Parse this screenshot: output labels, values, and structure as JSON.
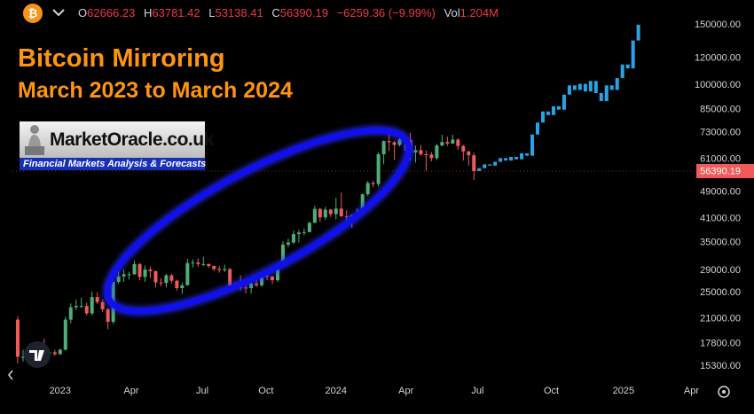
{
  "header": {
    "items": [
      {
        "label": "O",
        "value": "62666.23"
      },
      {
        "label": "H",
        "value": "63781.42"
      },
      {
        "label": "L",
        "value": "53138.41"
      },
      {
        "label": "C",
        "value": "56390.19"
      }
    ],
    "change": "−6259.36 (−9.99%)",
    "vol_label": "Vol",
    "vol": "1.204M"
  },
  "title": "Bitcoin Mirroring",
  "subtitle": "March 2023 to March 2024",
  "logo": {
    "name": "MarketOracle.co.uk",
    "tagline": "Financial Markets Analysis & Forecasts"
  },
  "chart_data": {
    "type": "candlestick",
    "log_scale": true,
    "grid": false,
    "ylim": [
      14100,
      176900
    ],
    "yticks": [
      {
        "value": 150000,
        "label": "150000.00"
      },
      {
        "value": 120000,
        "label": "120000.00"
      },
      {
        "value": 100000,
        "label": "100000.00"
      },
      {
        "value": 85000,
        "label": "85000.00"
      },
      {
        "value": 73000,
        "label": "73000.00"
      },
      {
        "value": 61000,
        "label": "61000.00"
      },
      {
        "value": 49000,
        "label": "49000.00"
      },
      {
        "value": 41000,
        "label": "41000.00"
      },
      {
        "value": 35000,
        "label": "35000.00"
      },
      {
        "value": 29000,
        "label": "29000.00"
      },
      {
        "value": 25000,
        "label": "25000.00"
      },
      {
        "value": 21000,
        "label": "21000.00"
      },
      {
        "value": 17800,
        "label": "17800.00"
      },
      {
        "value": 15300,
        "label": "15300.00"
      }
    ],
    "xlim": [
      -1,
      128.6
    ],
    "xticks": [
      {
        "value": 8,
        "label": "2023"
      },
      {
        "value": 21.4,
        "label": "Apr"
      },
      {
        "value": 34.8,
        "label": "Jul"
      },
      {
        "value": 46.8,
        "label": "Oct"
      },
      {
        "value": 60,
        "label": "2024"
      },
      {
        "value": 73.2,
        "label": "Apr"
      },
      {
        "value": 86.7,
        "label": "Jul"
      },
      {
        "value": 100.6,
        "label": "Oct"
      },
      {
        "value": 114.2,
        "label": "2025"
      },
      {
        "value": 127,
        "label": "Apr"
      }
    ],
    "candles": {
      "up_color": "#4caf78",
      "down_color": "#f05a5a",
      "open": [
        20900,
        16300,
        16300,
        16400,
        17100,
        17100,
        16800,
        16800,
        16600,
        17100,
        20900,
        22700,
        22900,
        22900,
        21800,
        24300,
        23500,
        22400,
        20600,
        26900,
        27900,
        28300,
        28300,
        30300,
        27800,
        29200,
        28900,
        26800,
        26700,
        28100,
        27100,
        25800,
        26300,
        30500,
        30600,
        30300,
        30300,
        29900,
        29300,
        29100,
        29300,
        26100,
        26000,
        25900,
        25800,
        26600,
        26300,
        28000,
        27900,
        27200,
        30000,
        34500,
        35000,
        37000,
        37400,
        37500,
        39900,
        43800,
        41400,
        43600,
        42300,
        43900,
        41700,
        41600,
        42000,
        42600,
        48300,
        52100,
        51700,
        63100,
        68900,
        68400,
        67200,
        69700,
        69400,
        63900,
        64900,
        63100,
        63000,
        61500,
        66900,
        68500,
        67800,
        69600,
        66700,
        64300,
        62666.23
      ],
      "high": [
        21400,
        17100,
        16800,
        17400,
        18000,
        18400,
        17000,
        17100,
        17200,
        21300,
        23300,
        23900,
        24200,
        23400,
        25200,
        25100,
        23900,
        22600,
        28400,
        29000,
        29200,
        28800,
        31000,
        30500,
        30000,
        29800,
        29000,
        27600,
        28400,
        28400,
        27300,
        26800,
        31400,
        31300,
        31500,
        31800,
        30400,
        30000,
        29900,
        30200,
        29500,
        26800,
        28100,
        26400,
        27000,
        27500,
        28600,
        28600,
        28000,
        30400,
        35300,
        35900,
        37900,
        38000,
        38400,
        40200,
        44700,
        44000,
        44400,
        43800,
        47200,
        48900,
        43400,
        42100,
        43900,
        48500,
        52800,
        52900,
        64000,
        69200,
        73800,
        68900,
        71600,
        71300,
        72800,
        66900,
        67200,
        64700,
        64000,
        67700,
        71900,
        71000,
        71900,
        70200,
        67200,
        64600,
        63781.42
      ],
      "low": [
        15600,
        15800,
        15500,
        16000,
        16700,
        16300,
        16400,
        16400,
        16500,
        17000,
        20400,
        22300,
        22600,
        21500,
        21500,
        23200,
        22000,
        19600,
        20300,
        26600,
        26900,
        27300,
        28200,
        27200,
        26900,
        27600,
        25900,
        26100,
        25900,
        26600,
        25400,
        24800,
        26200,
        29600,
        29800,
        29900,
        29600,
        28900,
        28600,
        28700,
        25200,
        25800,
        25400,
        24900,
        24900,
        26000,
        26000,
        27200,
        26500,
        26900,
        29900,
        33900,
        34600,
        35000,
        36700,
        37500,
        39900,
        40200,
        40700,
        41500,
        40800,
        41500,
        40300,
        38600,
        41900,
        42300,
        47700,
        50600,
        50900,
        59000,
        64500,
        60800,
        66500,
        64600,
        60700,
        59700,
        62400,
        56500,
        60200,
        60700,
        66600,
        66700,
        67600,
        65100,
        60500,
        58500,
        53138.41
      ],
      "close": [
        16300,
        16300,
        16400,
        17100,
        17100,
        16800,
        16800,
        16600,
        17100,
        20900,
        22700,
        22900,
        22900,
        21800,
        24300,
        23500,
        22400,
        20600,
        26900,
        27900,
        28300,
        28300,
        30300,
        27800,
        29200,
        28900,
        26800,
        26700,
        28100,
        27100,
        25800,
        26300,
        30500,
        30600,
        30300,
        30300,
        29900,
        29300,
        29100,
        29300,
        26100,
        26000,
        25900,
        25800,
        26600,
        26300,
        28000,
        27900,
        27200,
        30000,
        34500,
        35000,
        37000,
        37400,
        37500,
        39900,
        43800,
        41400,
        43600,
        42300,
        43900,
        41700,
        41600,
        42000,
        42600,
        48300,
        52100,
        51700,
        63100,
        68900,
        68400,
        67200,
        69700,
        69400,
        63900,
        64900,
        63100,
        63000,
        61500,
        66900,
        68500,
        67800,
        69600,
        66700,
        64300,
        62700,
        56390.19
      ]
    },
    "projection": {
      "color": "#29a3e8",
      "open": [
        56390,
        57500,
        59000,
        58500,
        60000,
        61500,
        60500,
        62000,
        61000,
        63500,
        62500,
        72000,
        78000,
        84000,
        82000,
        87000,
        85000,
        94000,
        100000,
        97000,
        101000,
        96000,
        103000,
        95000,
        90000,
        100000,
        97000,
        105000,
        115000,
        112000,
        135000
      ],
      "close": [
        57500,
        59000,
        58500,
        60000,
        61500,
        60500,
        62000,
        61000,
        63500,
        62500,
        72000,
        78000,
        84000,
        82000,
        87000,
        85000,
        94000,
        100000,
        97000,
        101000,
        96000,
        103000,
        95000,
        90000,
        100000,
        97000,
        105000,
        115000,
        112000,
        135000,
        150000
      ]
    },
    "last_price": 56390.19,
    "last_price_color": "#f05a5a"
  }
}
